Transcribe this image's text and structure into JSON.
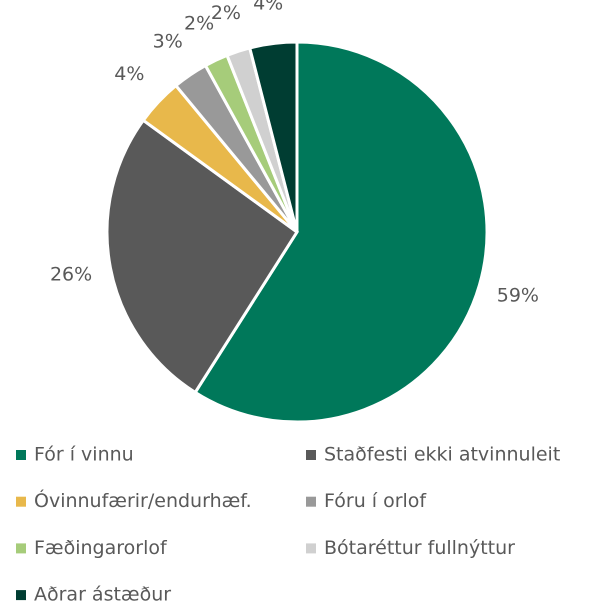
{
  "chart_data": {
    "type": "pie",
    "categories": [
      "Fór í vinnu",
      "Staðfesti ekki atvinnuleit",
      "Óvinnufærir/endurhæf.",
      "Fóru í orlof",
      "Fæðingarorlof",
      "Bótaréttur fullnýttur",
      "Aðrar ástæður"
    ],
    "values": [
      59,
      26,
      4,
      3,
      2,
      2,
      4
    ],
    "value_labels": [
      "59%",
      "26%",
      "4%",
      "3%",
      "2%",
      "2%",
      "4%"
    ],
    "colors": [
      "#00785a",
      "#595959",
      "#e8b84b",
      "#999999",
      "#a6cc7a",
      "#d0d0d0",
      "#003d32"
    ],
    "legend": "bottom"
  }
}
